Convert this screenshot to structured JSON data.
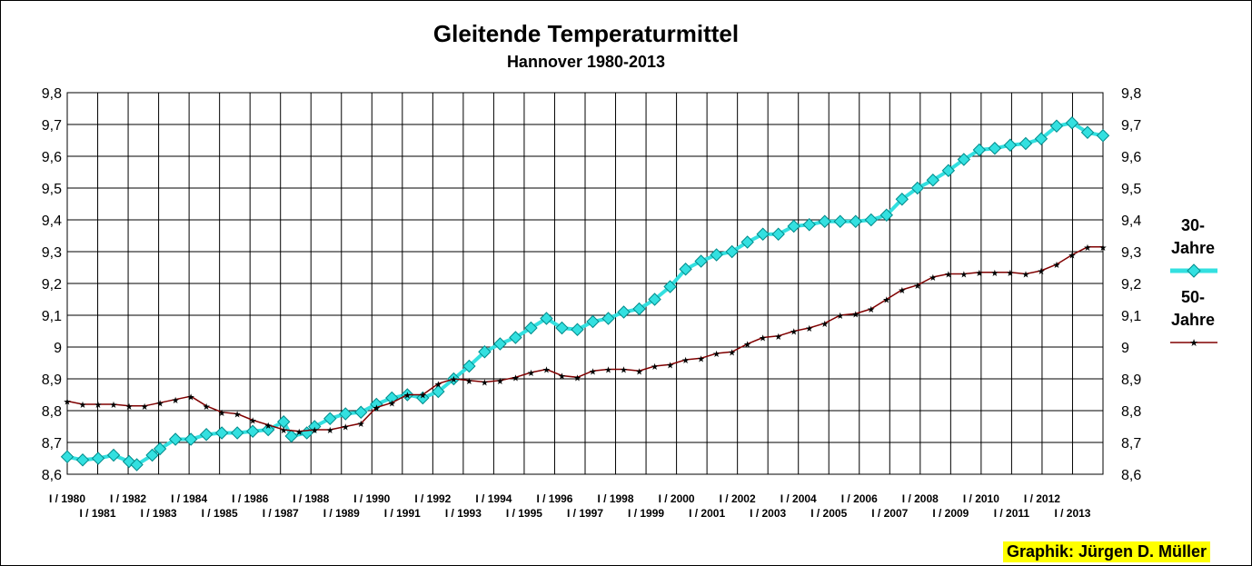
{
  "chart_data": {
    "type": "line",
    "title": "Gleitende Temperaturmittel",
    "subtitle": "Hannover 1980-2013",
    "ylim": [
      8.6,
      9.8
    ],
    "y_ticks": [
      "8,6",
      "8,7",
      "8,8",
      "8,9",
      "9",
      "9,1",
      "9,2",
      "9,3",
      "9,4",
      "9,5",
      "9,6",
      "9,7",
      "9,8"
    ],
    "x_labels_upper": [
      "I / 1980",
      "I / 1982",
      "I / 1984",
      "I / 1986",
      "I / 1988",
      "I / 1990",
      "I / 1992",
      "I / 1994",
      "I / 1996",
      "I / 1998",
      "I / 2000",
      "I / 2002",
      "I / 2004",
      "I / 2006",
      "I / 2008",
      "I / 2010",
      "I / 2012"
    ],
    "x_labels_lower": [
      "I / 1981",
      "I / 1983",
      "I / 1985",
      "I / 1987",
      "I / 1989",
      "I / 1991",
      "I / 1993",
      "I / 1995",
      "I / 1997",
      "I / 1999",
      "I / 2001",
      "I / 2003",
      "I / 2005",
      "I / 2007",
      "I / 2009",
      "I / 2011",
      "I / 2013"
    ],
    "x_start": 1980.0,
    "x_end": 2013.5,
    "grid": true,
    "legend_position": "right",
    "series": [
      {
        "name": "30-Jahre",
        "color": "#33e0e0",
        "marker": "diamond",
        "points": [
          [
            1980.0,
            8.655
          ],
          [
            1980.5,
            8.645
          ],
          [
            1981.0,
            8.65
          ],
          [
            1981.5,
            8.66
          ],
          [
            1982.0,
            8.64
          ],
          [
            1982.25,
            8.63
          ],
          [
            1982.75,
            8.66
          ],
          [
            1983.0,
            8.68
          ],
          [
            1983.5,
            8.71
          ],
          [
            1984.0,
            8.71
          ],
          [
            1984.5,
            8.725
          ],
          [
            1985.0,
            8.73
          ],
          [
            1985.5,
            8.73
          ],
          [
            1986.0,
            8.735
          ],
          [
            1986.5,
            8.74
          ],
          [
            1987.0,
            8.765
          ],
          [
            1987.25,
            8.72
          ],
          [
            1987.75,
            8.73
          ],
          [
            1988.0,
            8.75
          ],
          [
            1988.5,
            8.775
          ],
          [
            1989.0,
            8.79
          ],
          [
            1989.5,
            8.795
          ],
          [
            1990.0,
            8.82
          ],
          [
            1990.5,
            8.84
          ],
          [
            1991.0,
            8.85
          ],
          [
            1991.5,
            8.84
          ],
          [
            1992.0,
            8.86
          ],
          [
            1992.5,
            8.9
          ],
          [
            1993.0,
            8.94
          ],
          [
            1993.5,
            8.985
          ],
          [
            1994.0,
            9.01
          ],
          [
            1994.5,
            9.03
          ],
          [
            1995.0,
            9.06
          ],
          [
            1995.5,
            9.09
          ],
          [
            1996.0,
            9.06
          ],
          [
            1996.5,
            9.055
          ],
          [
            1997.0,
            9.08
          ],
          [
            1997.5,
            9.09
          ],
          [
            1998.0,
            9.11
          ],
          [
            1998.5,
            9.12
          ],
          [
            1999.0,
            9.15
          ],
          [
            1999.5,
            9.19
          ],
          [
            2000.0,
            9.245
          ],
          [
            2000.5,
            9.27
          ],
          [
            2001.0,
            9.29
          ],
          [
            2001.5,
            9.3
          ],
          [
            2002.0,
            9.33
          ],
          [
            2002.5,
            9.355
          ],
          [
            2003.0,
            9.355
          ],
          [
            2003.5,
            9.38
          ],
          [
            2004.0,
            9.385
          ],
          [
            2004.5,
            9.395
          ],
          [
            2005.0,
            9.395
          ],
          [
            2005.5,
            9.395
          ],
          [
            2006.0,
            9.4
          ],
          [
            2006.5,
            9.415
          ],
          [
            2007.0,
            9.465
          ],
          [
            2007.5,
            9.5
          ],
          [
            2008.0,
            9.525
          ],
          [
            2008.5,
            9.555
          ],
          [
            2009.0,
            9.59
          ],
          [
            2009.5,
            9.62
          ],
          [
            2010.0,
            9.625
          ],
          [
            2010.5,
            9.635
          ],
          [
            2011.0,
            9.64
          ],
          [
            2011.5,
            9.655
          ],
          [
            2012.0,
            9.695
          ],
          [
            2012.5,
            9.705
          ],
          [
            2013.0,
            9.675
          ],
          [
            2013.5,
            9.665
          ]
        ]
      },
      {
        "name": "50-Jahre",
        "color": "#800000",
        "marker": "star",
        "points": [
          [
            1980.0,
            8.83
          ],
          [
            1980.5,
            8.82
          ],
          [
            1981.0,
            8.82
          ],
          [
            1981.5,
            8.82
          ],
          [
            1982.0,
            8.815
          ],
          [
            1982.5,
            8.815
          ],
          [
            1983.0,
            8.825
          ],
          [
            1983.5,
            8.835
          ],
          [
            1984.0,
            8.845
          ],
          [
            1984.5,
            8.815
          ],
          [
            1985.0,
            8.795
          ],
          [
            1985.5,
            8.79
          ],
          [
            1986.0,
            8.77
          ],
          [
            1986.5,
            8.755
          ],
          [
            1987.0,
            8.74
          ],
          [
            1987.5,
            8.735
          ],
          [
            1988.0,
            8.74
          ],
          [
            1988.5,
            8.74
          ],
          [
            1989.0,
            8.75
          ],
          [
            1989.5,
            8.76
          ],
          [
            1990.0,
            8.81
          ],
          [
            1990.5,
            8.825
          ],
          [
            1991.0,
            8.85
          ],
          [
            1991.5,
            8.85
          ],
          [
            1992.0,
            8.885
          ],
          [
            1992.5,
            8.9
          ],
          [
            1993.0,
            8.895
          ],
          [
            1993.5,
            8.89
          ],
          [
            1994.0,
            8.895
          ],
          [
            1994.5,
            8.905
          ],
          [
            1995.0,
            8.92
          ],
          [
            1995.5,
            8.93
          ],
          [
            1996.0,
            8.91
          ],
          [
            1996.5,
            8.905
          ],
          [
            1997.0,
            8.925
          ],
          [
            1997.5,
            8.93
          ],
          [
            1998.0,
            8.93
          ],
          [
            1998.5,
            8.925
          ],
          [
            1999.0,
            8.94
          ],
          [
            1999.5,
            8.945
          ],
          [
            2000.0,
            8.96
          ],
          [
            2000.5,
            8.965
          ],
          [
            2001.0,
            8.98
          ],
          [
            2001.5,
            8.985
          ],
          [
            2002.0,
            9.01
          ],
          [
            2002.5,
            9.03
          ],
          [
            2003.0,
            9.035
          ],
          [
            2003.5,
            9.05
          ],
          [
            2004.0,
            9.06
          ],
          [
            2004.5,
            9.075
          ],
          [
            2005.0,
            9.1
          ],
          [
            2005.5,
            9.105
          ],
          [
            2006.0,
            9.12
          ],
          [
            2006.5,
            9.15
          ],
          [
            2007.0,
            9.18
          ],
          [
            2007.5,
            9.195
          ],
          [
            2008.0,
            9.22
          ],
          [
            2008.5,
            9.23
          ],
          [
            2009.0,
            9.23
          ],
          [
            2009.5,
            9.235
          ],
          [
            2010.0,
            9.235
          ],
          [
            2010.5,
            9.235
          ],
          [
            2011.0,
            9.23
          ],
          [
            2011.5,
            9.24
          ],
          [
            2012.0,
            9.26
          ],
          [
            2012.5,
            9.29
          ],
          [
            2013.0,
            9.315
          ],
          [
            2013.5,
            9.315
          ]
        ]
      }
    ]
  },
  "legend": {
    "item_30": [
      "30-",
      "Jahre"
    ],
    "item_50": [
      "50-",
      "Jahre"
    ]
  },
  "credit": "Graphik: Jürgen D. Müller"
}
